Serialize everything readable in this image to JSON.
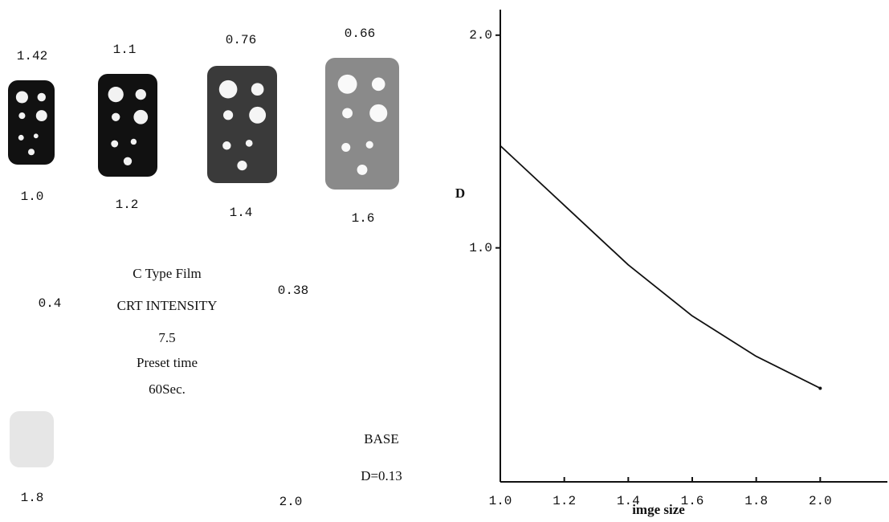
{
  "chart_data": {
    "type": "line",
    "x_label": "imge size",
    "y_label": "D",
    "x": [
      1.0,
      1.2,
      1.4,
      1.6,
      1.8,
      2.0
    ],
    "series": [
      {
        "color": "#111111",
        "values": [
          1.48,
          1.2,
          0.92,
          0.68,
          0.49,
          0.34
        ]
      }
    ],
    "xlim": [
      1.0,
      2.21
    ],
    "ylim": [
      -0.1,
      2.12
    ],
    "xticks": [
      {
        "value": 1,
        "label": "1.0"
      },
      1.2,
      1.4,
      1.6,
      1.8,
      {
        "value": 2,
        "label": "2.0"
      }
    ],
    "yticks": [
      {
        "value": 1,
        "label": "1.0"
      },
      {
        "value": 2,
        "label": "2.0"
      }
    ]
  },
  "samples": [
    {
      "density": "1.42",
      "size": "1.0"
    },
    {
      "density": "1.1",
      "size": "1.2"
    },
    {
      "density": "0.76",
      "size": "1.4"
    },
    {
      "density": "0.66",
      "size": "1.6"
    },
    {
      "density": "0.4",
      "size": "1.8"
    },
    {
      "density": "0.38",
      "size": "2.0"
    }
  ],
  "film_info": [
    "C Type Film",
    "CRT INTENSITY",
    "7.5",
    "Preset time",
    "60Sec."
  ],
  "base": [
    "BASE",
    "D=0.13"
  ]
}
